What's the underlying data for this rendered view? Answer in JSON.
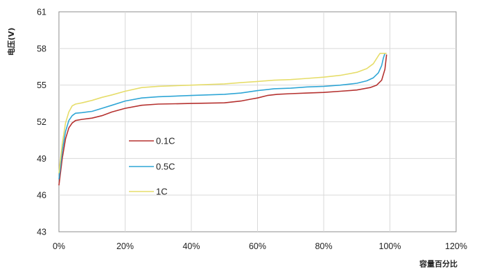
{
  "chart_data": {
    "type": "line",
    "title": "",
    "xlabel": "容量百分比",
    "ylabel": "电压(V)",
    "xlim": [
      0,
      120
    ],
    "ylim": [
      43,
      61
    ],
    "x_ticks": [
      0,
      20,
      40,
      60,
      80,
      100,
      120
    ],
    "x_tick_labels": [
      "0%",
      "20%",
      "40%",
      "60%",
      "80%",
      "100%",
      "120%"
    ],
    "y_ticks": [
      43,
      46,
      49,
      52,
      55,
      58,
      61
    ],
    "y_tick_labels": [
      "43",
      "46",
      "49",
      "52",
      "55",
      "58",
      "61"
    ],
    "grid": true,
    "legend_position": "left-center",
    "series": [
      {
        "name": "0.1C",
        "color": "#b5312f",
        "points": [
          [
            0,
            46.8
          ],
          [
            1,
            49.0
          ],
          [
            2,
            50.6
          ],
          [
            3,
            51.5
          ],
          [
            4,
            51.9
          ],
          [
            5,
            52.1
          ],
          [
            7,
            52.2
          ],
          [
            10,
            52.3
          ],
          [
            13,
            52.5
          ],
          [
            16,
            52.8
          ],
          [
            20,
            53.1
          ],
          [
            25,
            53.35
          ],
          [
            30,
            53.45
          ],
          [
            40,
            53.5
          ],
          [
            50,
            53.55
          ],
          [
            55,
            53.7
          ],
          [
            58,
            53.85
          ],
          [
            60,
            53.95
          ],
          [
            63,
            54.15
          ],
          [
            66,
            54.25
          ],
          [
            70,
            54.3
          ],
          [
            75,
            54.35
          ],
          [
            80,
            54.4
          ],
          [
            85,
            54.5
          ],
          [
            90,
            54.6
          ],
          [
            94,
            54.8
          ],
          [
            96,
            55.0
          ],
          [
            97.5,
            55.4
          ],
          [
            98.5,
            56.3
          ],
          [
            99,
            57.5
          ]
        ]
      },
      {
        "name": "0.5C",
        "color": "#2fa6d6",
        "points": [
          [
            0,
            47.3
          ],
          [
            1,
            49.6
          ],
          [
            2,
            51.2
          ],
          [
            3,
            52.1
          ],
          [
            4,
            52.5
          ],
          [
            5,
            52.7
          ],
          [
            7,
            52.75
          ],
          [
            10,
            52.85
          ],
          [
            13,
            53.1
          ],
          [
            16,
            53.35
          ],
          [
            20,
            53.7
          ],
          [
            25,
            53.95
          ],
          [
            30,
            54.05
          ],
          [
            40,
            54.15
          ],
          [
            50,
            54.25
          ],
          [
            55,
            54.35
          ],
          [
            60,
            54.55
          ],
          [
            65,
            54.7
          ],
          [
            70,
            54.75
          ],
          [
            75,
            54.85
          ],
          [
            80,
            54.9
          ],
          [
            85,
            55.0
          ],
          [
            90,
            55.15
          ],
          [
            93,
            55.35
          ],
          [
            95,
            55.6
          ],
          [
            96.5,
            56.0
          ],
          [
            97.5,
            56.6
          ],
          [
            98,
            57.2
          ],
          [
            98.5,
            57.6
          ]
        ]
      },
      {
        "name": "1C",
        "color": "#e6dd6a",
        "points": [
          [
            0,
            47.8
          ],
          [
            1,
            50.2
          ],
          [
            2,
            51.9
          ],
          [
            3,
            52.8
          ],
          [
            4,
            53.3
          ],
          [
            5,
            53.45
          ],
          [
            7,
            53.55
          ],
          [
            10,
            53.75
          ],
          [
            13,
            54.0
          ],
          [
            16,
            54.2
          ],
          [
            20,
            54.5
          ],
          [
            25,
            54.8
          ],
          [
            30,
            54.9
          ],
          [
            40,
            55.0
          ],
          [
            50,
            55.1
          ],
          [
            55,
            55.2
          ],
          [
            60,
            55.3
          ],
          [
            65,
            55.4
          ],
          [
            70,
            55.45
          ],
          [
            75,
            55.55
          ],
          [
            80,
            55.65
          ],
          [
            85,
            55.8
          ],
          [
            90,
            56.05
          ],
          [
            93,
            56.35
          ],
          [
            95,
            56.75
          ],
          [
            96.5,
            57.4
          ],
          [
            97,
            57.6
          ],
          [
            99,
            57.6
          ]
        ]
      }
    ]
  }
}
